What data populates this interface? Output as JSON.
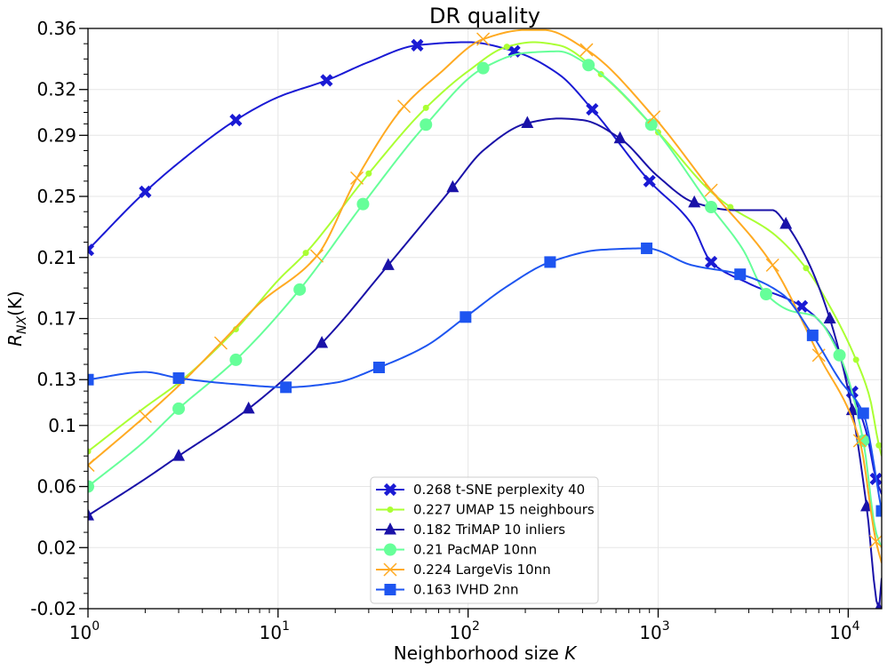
{
  "chart_data": {
    "type": "line",
    "title": "DR quality",
    "xlabel": "Neighborhood size",
    "xlabel_var": "K",
    "ylabel_main": "R",
    "ylabel_sub": "NX",
    "ylabel_suffix": "(K)",
    "xscale": "log",
    "xlim": [
      1,
      15000
    ],
    "ylim": [
      -0.02,
      0.36
    ],
    "grid": true,
    "legend_position": "lower-center",
    "x_tick_labels": [
      {
        "value": 1,
        "base": "10",
        "exp": "0"
      },
      {
        "value": 10,
        "base": "10",
        "exp": "1"
      },
      {
        "value": 100,
        "base": "10",
        "exp": "2"
      },
      {
        "value": 1000,
        "base": "10",
        "exp": "3"
      },
      {
        "value": 10000,
        "base": "10",
        "exp": "4"
      }
    ],
    "y_tick_labels": [
      {
        "value": 0.36,
        "label": "0.36"
      },
      {
        "value": 0.32,
        "label": "0.32"
      },
      {
        "value": 0.29,
        "label": "0.29"
      },
      {
        "value": 0.25,
        "label": "0.25"
      },
      {
        "value": 0.21,
        "label": "0.21"
      },
      {
        "value": 0.17,
        "label": "0.17"
      },
      {
        "value": 0.13,
        "label": "0.13"
      },
      {
        "value": 0.1,
        "label": "0.1"
      },
      {
        "value": 0.06,
        "label": "0.06"
      },
      {
        "value": 0.02,
        "label": "0.02"
      },
      {
        "value": -0.02,
        "label": "-0.02"
      }
    ],
    "series": [
      {
        "name": "0.268 t-SNE perplexity 40",
        "color": "#1a1ad4",
        "marker": "x-filled",
        "x": [
          1,
          2,
          3,
          6,
          10,
          18,
          30,
          54,
          100,
          175,
          300,
          450,
          900,
          1500,
          1900,
          3000,
          5700,
          8000,
          10500,
          12500,
          14000,
          15000
        ],
        "y": [
          0.215,
          0.253,
          0.272,
          0.3,
          0.315,
          0.326,
          0.338,
          0.349,
          0.351,
          0.345,
          0.33,
          0.307,
          0.26,
          0.232,
          0.207,
          0.193,
          0.178,
          0.16,
          0.122,
          0.095,
          0.065,
          0.055
        ],
        "marker_x": [
          1,
          2,
          6,
          18,
          54,
          175,
          450,
          900,
          1900,
          5700,
          10500,
          14000
        ]
      },
      {
        "name": "0.227 UMAP 15 neighbours",
        "color": "#aaff33",
        "marker": "dot",
        "x": [
          1,
          2,
          3,
          6,
          10,
          14,
          30,
          60,
          100,
          160,
          220,
          300,
          500,
          1000,
          1900,
          2400,
          4000,
          6000,
          8000,
          11000,
          13000,
          14500,
          15000
        ],
        "y": [
          0.083,
          0.112,
          0.128,
          0.163,
          0.195,
          0.213,
          0.265,
          0.308,
          0.332,
          0.348,
          0.351,
          0.349,
          0.33,
          0.292,
          0.253,
          0.243,
          0.226,
          0.203,
          0.178,
          0.143,
          0.118,
          0.087,
          0.08
        ],
        "marker_x": [
          1,
          3,
          6,
          14,
          30,
          60,
          160,
          500,
          1000,
          2400,
          6000,
          11000,
          14500
        ]
      },
      {
        "name": "0.182 TriMAP 10 inliers",
        "color": "#1a12a8",
        "marker": "triangle",
        "x": [
          1,
          2,
          3,
          7,
          17,
          38,
          83,
          120,
          205,
          300,
          400,
          630,
          1000,
          1550,
          2500,
          4000,
          4700,
          6000,
          8000,
          10500,
          12500,
          14500,
          15000
        ],
        "y": [
          0.041,
          0.065,
          0.08,
          0.111,
          0.154,
          0.205,
          0.256,
          0.28,
          0.298,
          0.301,
          0.3,
          0.288,
          0.263,
          0.246,
          0.241,
          0.241,
          0.232,
          0.21,
          0.17,
          0.11,
          0.047,
          -0.02,
          0.0
        ],
        "marker_x": [
          1,
          3,
          7,
          17,
          38,
          83,
          205,
          630,
          1550,
          4700,
          8000,
          10500,
          12500,
          14500
        ]
      },
      {
        "name": "0.21 PacMAP 10nn",
        "color": "#66ff99",
        "marker": "circle",
        "x": [
          1,
          2,
          3,
          6,
          13,
          28,
          60,
          120,
          200,
          300,
          430,
          920,
          1900,
          2800,
          3700,
          5000,
          6500,
          9000,
          12000,
          14000,
          15000
        ],
        "y": [
          0.06,
          0.09,
          0.111,
          0.143,
          0.189,
          0.245,
          0.297,
          0.334,
          0.344,
          0.345,
          0.336,
          0.297,
          0.243,
          0.215,
          0.186,
          0.175,
          0.172,
          0.146,
          0.09,
          0.03,
          0.02
        ],
        "marker_x": [
          1,
          3,
          6,
          13,
          28,
          60,
          120,
          430,
          920,
          1900,
          3700,
          9000,
          12000
        ]
      },
      {
        "name": "0.224 LargeVis 10nn",
        "color": "#ffaa22",
        "marker": "x-thin",
        "x": [
          1,
          2,
          3,
          5,
          8,
          16,
          26,
          46,
          70,
          120,
          200,
          250,
          420,
          950,
          1900,
          4000,
          7000,
          11500,
          14000,
          15000
        ],
        "y": [
          0.074,
          0.106,
          0.126,
          0.154,
          0.18,
          0.211,
          0.262,
          0.309,
          0.33,
          0.353,
          0.359,
          0.359,
          0.346,
          0.302,
          0.254,
          0.205,
          0.146,
          0.09,
          0.024,
          0.01
        ],
        "marker_x": [
          1,
          2,
          5,
          16,
          26,
          46,
          120,
          420,
          950,
          1900,
          4000,
          7000,
          11500,
          14000
        ]
      },
      {
        "name": "0.163 IVHD 2nn",
        "color": "#1e55f0",
        "marker": "square",
        "x": [
          1,
          2,
          3,
          6,
          11,
          20,
          34,
          60,
          97,
          160,
          270,
          500,
          870,
          1500,
          2700,
          4500,
          6500,
          9000,
          12000,
          15000
        ],
        "y": [
          0.13,
          0.135,
          0.131,
          0.127,
          0.125,
          0.128,
          0.138,
          0.152,
          0.171,
          0.191,
          0.207,
          0.215,
          0.216,
          0.205,
          0.199,
          0.186,
          0.159,
          0.13,
          0.108,
          0.044
        ],
        "marker_x": [
          1,
          3,
          11,
          34,
          97,
          270,
          870,
          2700,
          6500,
          12000,
          15000
        ]
      }
    ]
  }
}
